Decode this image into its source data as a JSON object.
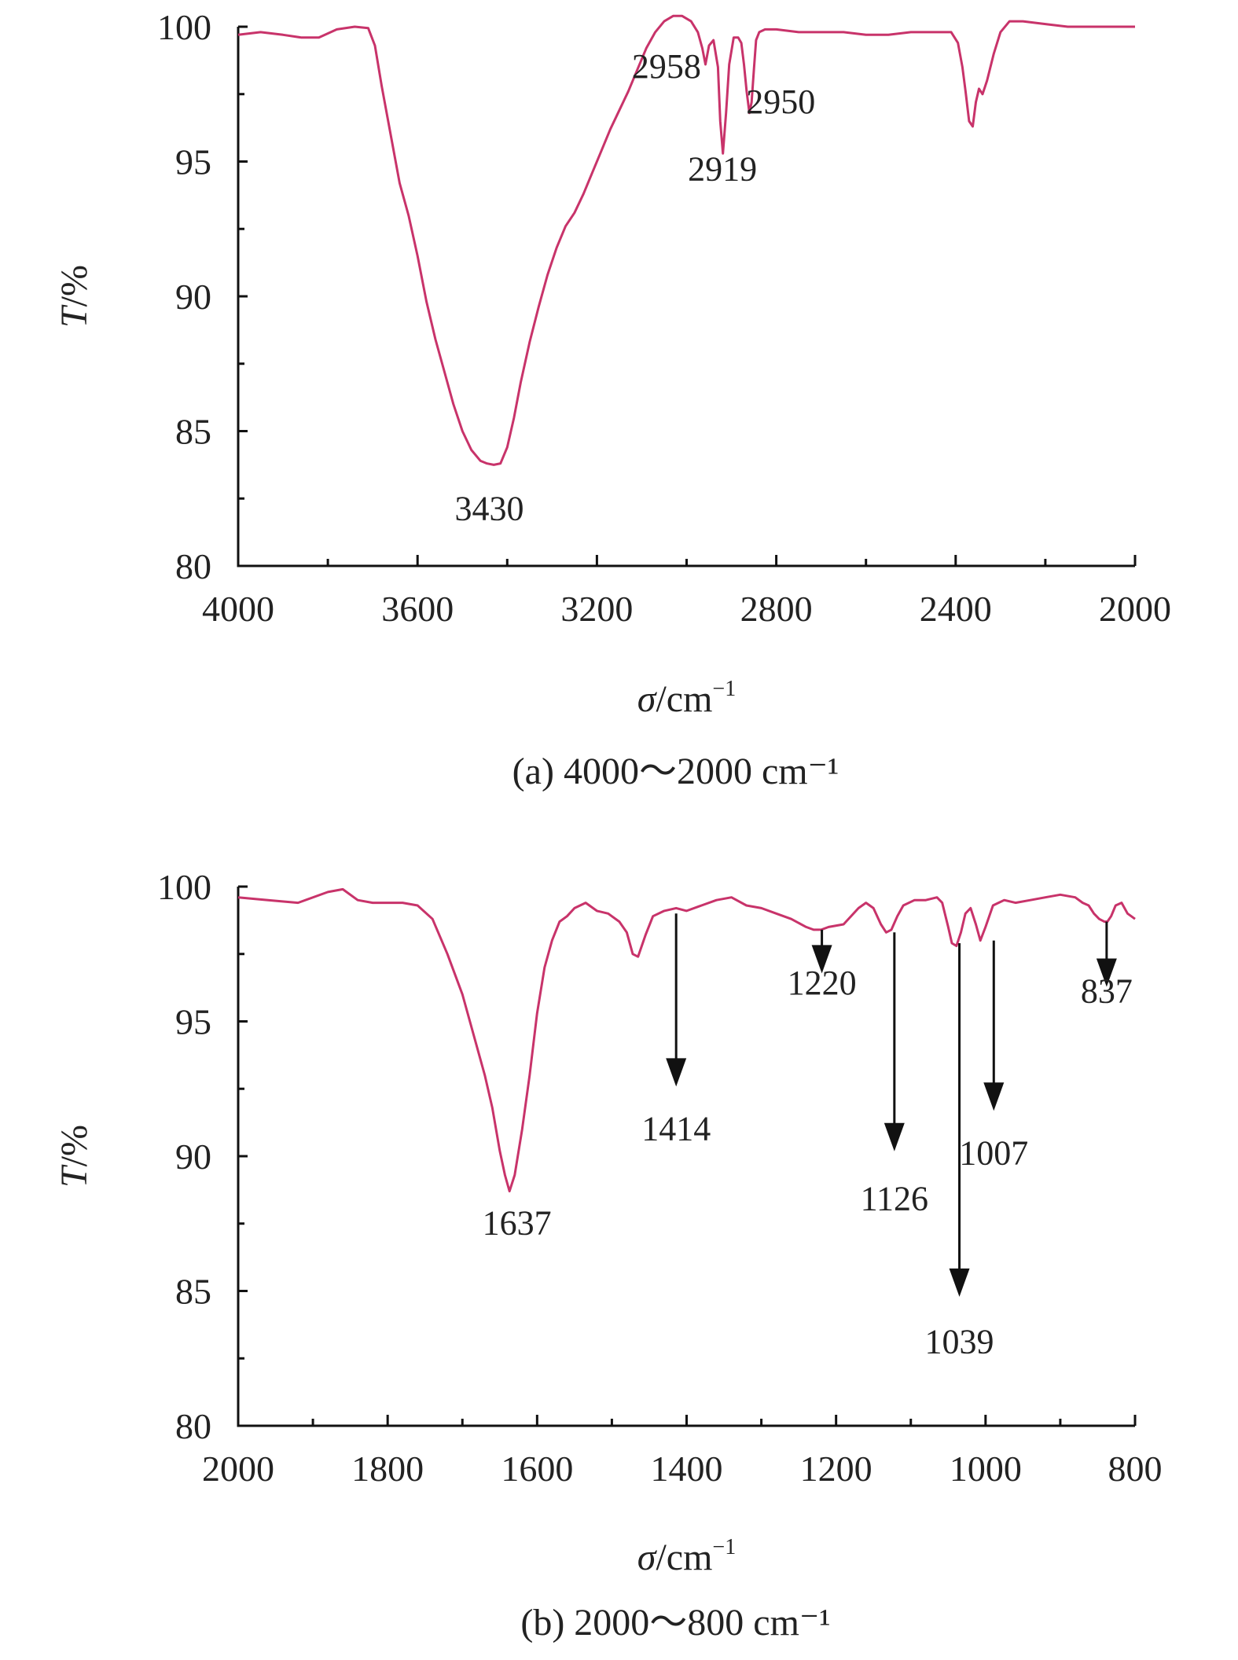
{
  "colors": {
    "spectrum": "#c8336a",
    "axis": "#111111",
    "text": "#222222"
  },
  "chart_data": [
    {
      "type": "line",
      "caption": "(a) 4000～2000 cm⁻¹",
      "xlabel_symbol": "σ",
      "xlabel_unit": "/cm",
      "xlabel_sup": "−1",
      "ylabel_symbol": "T",
      "ylabel_unit": "/%",
      "xlim": [
        4000,
        2000
      ],
      "ylim": [
        80,
        100
      ],
      "x_ticks": [
        "4000",
        "3600",
        "3200",
        "2800",
        "2400",
        "2000"
      ],
      "x_tick_values": [
        4000,
        3600,
        3200,
        2800,
        2400,
        2000
      ],
      "y_ticks": [
        "80",
        "85",
        "90",
        "95",
        "100"
      ],
      "y_tick_values": [
        80,
        85,
        90,
        95,
        100
      ],
      "grid": false,
      "series": [
        {
          "x": [
            4000,
            3950,
            3900,
            3860,
            3820,
            3780,
            3740,
            3710,
            3695,
            3680,
            3660,
            3640,
            3620,
            3600,
            3580,
            3560,
            3540,
            3520,
            3500,
            3480,
            3460,
            3445,
            3430,
            3415,
            3400,
            3385,
            3370,
            3350,
            3330,
            3310,
            3290,
            3270,
            3250,
            3230,
            3210,
            3190,
            3170,
            3150,
            3130,
            3110,
            3090,
            3070,
            3050,
            3030,
            3010,
            2990,
            2975,
            2965,
            2958,
            2950,
            2940,
            2930,
            2925,
            2919,
            2912,
            2905,
            2895,
            2885,
            2878,
            2872,
            2866,
            2860,
            2855,
            2850,
            2845,
            2838,
            2825,
            2800,
            2750,
            2700,
            2650,
            2600,
            2550,
            2500,
            2450,
            2410,
            2395,
            2385,
            2378,
            2370,
            2362,
            2355,
            2348,
            2340,
            2330,
            2315,
            2300,
            2280,
            2250,
            2200,
            2150,
            2100,
            2050,
            2000
          ],
          "y": [
            99.7,
            99.8,
            99.7,
            99.6,
            99.6,
            99.9,
            100.0,
            99.95,
            99.3,
            97.8,
            96.0,
            94.2,
            93.0,
            91.5,
            89.8,
            88.4,
            87.2,
            86.0,
            85.0,
            84.3,
            83.9,
            83.8,
            83.75,
            83.8,
            84.4,
            85.5,
            86.8,
            88.3,
            89.6,
            90.8,
            91.8,
            92.6,
            93.1,
            93.8,
            94.6,
            95.4,
            96.2,
            96.9,
            97.6,
            98.4,
            99.2,
            99.8,
            100.2,
            100.4,
            100.4,
            100.2,
            99.8,
            99.2,
            98.6,
            99.3,
            99.5,
            98.5,
            96.5,
            95.3,
            96.8,
            98.6,
            99.6,
            99.6,
            99.4,
            98.6,
            97.6,
            96.8,
            97.2,
            98.4,
            99.5,
            99.8,
            99.9,
            99.9,
            99.8,
            99.8,
            99.8,
            99.7,
            99.7,
            99.8,
            99.8,
            99.8,
            99.4,
            98.5,
            97.6,
            96.5,
            96.3,
            97.2,
            97.7,
            97.5,
            98.0,
            99.0,
            99.8,
            100.2,
            100.2,
            100.1,
            100.0,
            100.0,
            100.0,
            100.0
          ]
        }
      ],
      "annotations": [
        {
          "text": "3430",
          "x": 3440,
          "y": 81.7
        },
        {
          "text": "2958",
          "x": 3045,
          "y": 98.1
        },
        {
          "text": "2919",
          "x": 2920,
          "y": 94.3
        },
        {
          "text": "2950",
          "x": 2790,
          "y": 96.8
        }
      ]
    },
    {
      "type": "line",
      "caption": "(b) 2000～800 cm⁻¹",
      "xlabel_symbol": "σ",
      "xlabel_unit": "/cm",
      "xlabel_sup": "−1",
      "ylabel_symbol": "T",
      "ylabel_unit": "/%",
      "xlim": [
        2000,
        800
      ],
      "ylim": [
        80,
        100
      ],
      "x_ticks": [
        "2000",
        "1800",
        "1600",
        "1400",
        "1200",
        "1000",
        "800"
      ],
      "x_tick_values": [
        2000,
        1800,
        1600,
        1400,
        1200,
        1000,
        800
      ],
      "y_ticks": [
        "80",
        "85",
        "90",
        "95",
        "100"
      ],
      "y_tick_values": [
        80,
        85,
        90,
        95,
        100
      ],
      "grid": false,
      "series": [
        {
          "x": [
            2000,
            1960,
            1920,
            1880,
            1860,
            1840,
            1820,
            1800,
            1780,
            1760,
            1740,
            1720,
            1700,
            1690,
            1680,
            1670,
            1660,
            1650,
            1643,
            1637,
            1630,
            1620,
            1610,
            1600,
            1590,
            1580,
            1570,
            1560,
            1550,
            1535,
            1520,
            1505,
            1490,
            1480,
            1472,
            1465,
            1455,
            1445,
            1430,
            1414,
            1400,
            1380,
            1360,
            1340,
            1320,
            1300,
            1280,
            1260,
            1240,
            1230,
            1220,
            1210,
            1190,
            1170,
            1160,
            1150,
            1140,
            1133,
            1126,
            1118,
            1110,
            1095,
            1080,
            1065,
            1058,
            1050,
            1045,
            1039,
            1033,
            1027,
            1020,
            1013,
            1007,
            1000,
            990,
            975,
            960,
            940,
            920,
            900,
            880,
            870,
            862,
            855,
            848,
            841,
            837,
            832,
            826,
            818,
            810,
            805,
            800
          ],
          "y": [
            99.6,
            99.5,
            99.4,
            99.8,
            99.9,
            99.5,
            99.4,
            99.4,
            99.4,
            99.3,
            98.8,
            97.5,
            96.0,
            95.0,
            94.0,
            93.0,
            91.8,
            90.2,
            89.3,
            88.7,
            89.3,
            91.0,
            93.0,
            95.3,
            97.0,
            98.0,
            98.7,
            98.9,
            99.2,
            99.4,
            99.1,
            99.0,
            98.7,
            98.3,
            97.5,
            97.4,
            98.2,
            98.9,
            99.1,
            99.2,
            99.1,
            99.3,
            99.5,
            99.6,
            99.3,
            99.2,
            99.0,
            98.8,
            98.5,
            98.4,
            98.4,
            98.5,
            98.6,
            99.2,
            99.4,
            99.2,
            98.6,
            98.3,
            98.4,
            98.9,
            99.3,
            99.5,
            99.5,
            99.6,
            99.4,
            98.5,
            97.9,
            97.8,
            98.3,
            99.0,
            99.2,
            98.6,
            98.0,
            98.5,
            99.3,
            99.5,
            99.4,
            99.5,
            99.6,
            99.7,
            99.6,
            99.4,
            99.3,
            99.0,
            98.8,
            98.7,
            98.7,
            98.9,
            99.3,
            99.4,
            99.0,
            98.9,
            98.8
          ]
        }
      ],
      "annotations": [
        {
          "text": "1637",
          "x": 1627,
          "y": 87.1
        },
        {
          "text": "1414",
          "x": 1414,
          "y": 90.6,
          "arrow_from_y": 99.0,
          "arrow_to_y": 92.7
        },
        {
          "text": "1220",
          "x": 1219,
          "y": 96.0,
          "arrow_from_y": 98.4,
          "arrow_to_y": 96.9
        },
        {
          "text": "1126",
          "x": 1122,
          "y": 88.0,
          "arrow_from_y": 98.3,
          "arrow_to_y": 90.3
        },
        {
          "text": "1039",
          "x": 1035,
          "y": 82.7,
          "arrow_from_y": 97.9,
          "arrow_to_y": 84.9
        },
        {
          "text": "1007",
          "x": 989,
          "y": 89.7,
          "arrow_from_y": 98.0,
          "arrow_to_y": 91.8
        },
        {
          "text": "837",
          "x": 838,
          "y": 95.7,
          "arrow_from_y": 98.7,
          "arrow_to_y": 96.4
        }
      ]
    }
  ]
}
